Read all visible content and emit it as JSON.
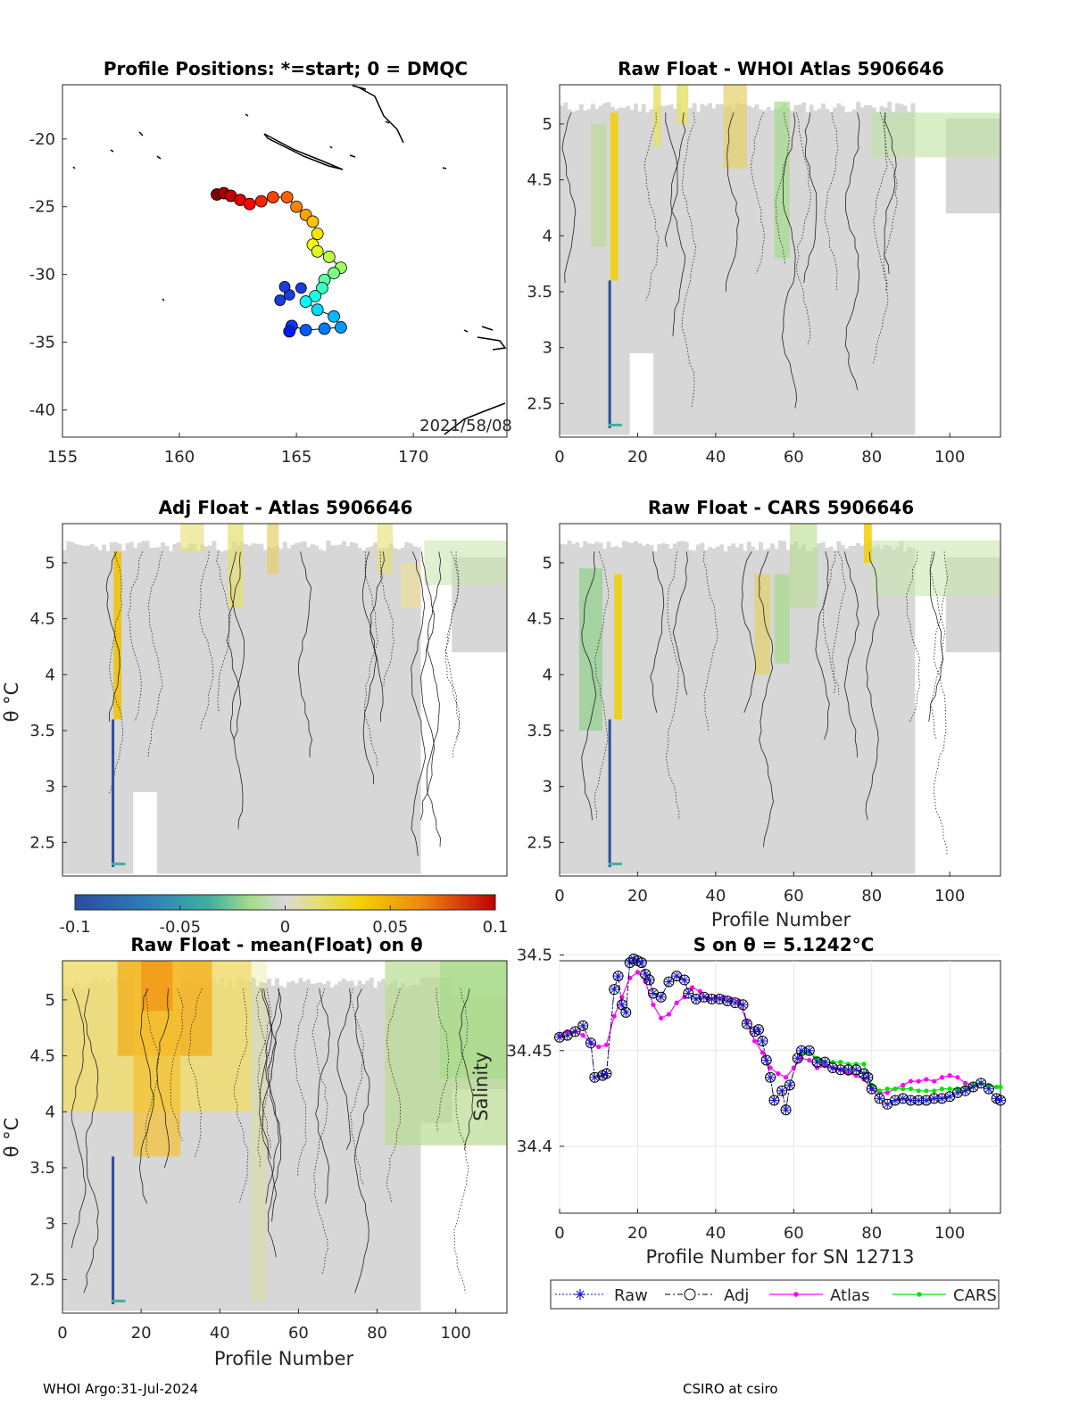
{
  "figure": {
    "footer_left": "WHOI Argo:31-Jul-2024",
    "footer_right": "CSIRO at csiro",
    "colorbar": {
      "ticks": [
        "-0.1",
        "-0.05",
        "0",
        "0.05",
        "0.1"
      ],
      "range": [
        -0.1,
        0.1
      ]
    }
  },
  "chart_data": [
    {
      "id": "positions",
      "type": "scatter",
      "title": "Profile Positions: *=start; 0 = DMQC",
      "annotation": "2021/58/08",
      "xticks": [
        "155",
        "160",
        "165",
        "170"
      ],
      "yticks": [
        "-20",
        "-25",
        "-30",
        "-35",
        "-40"
      ],
      "xlim": [
        155,
        174
      ],
      "ylim": [
        -42,
        -16
      ],
      "track": [
        [
          161.6,
          -24.1
        ],
        [
          161.9,
          -24.0
        ],
        [
          162.2,
          -24.2
        ],
        [
          162.6,
          -24.5
        ],
        [
          163.0,
          -24.8
        ],
        [
          163.5,
          -24.6
        ],
        [
          164.0,
          -24.3
        ],
        [
          164.6,
          -24.3
        ],
        [
          165.0,
          -25.0
        ],
        [
          165.4,
          -25.6
        ],
        [
          165.7,
          -26.1
        ],
        [
          165.9,
          -27.0
        ],
        [
          165.7,
          -27.8
        ],
        [
          165.9,
          -28.3
        ],
        [
          166.4,
          -28.7
        ],
        [
          166.9,
          -29.5
        ],
        [
          166.6,
          -29.9
        ],
        [
          166.2,
          -30.4
        ],
        [
          166.1,
          -31.0
        ],
        [
          165.8,
          -31.6
        ],
        [
          165.4,
          -32.0
        ],
        [
          165.9,
          -32.6
        ],
        [
          166.6,
          -33.1
        ],
        [
          166.9,
          -33.9
        ],
        [
          166.2,
          -34.0
        ],
        [
          165.4,
          -34.1
        ],
        [
          164.8,
          -33.8
        ],
        [
          164.7,
          -34.2
        ]
      ],
      "dmqc_cluster": [
        [
          164.7,
          -31.5
        ],
        [
          164.3,
          -31.9
        ],
        [
          165.2,
          -31.0
        ],
        [
          164.5,
          -30.9
        ]
      ]
    },
    {
      "id": "whoi_atlas",
      "type": "heatmap",
      "title": "Raw Float - WHOI Atlas  5906646",
      "xlabel": "",
      "ylabel": "",
      "xticks": [
        "0",
        "20",
        "40",
        "60",
        "80",
        "100"
      ],
      "yticks": [
        "5",
        "4.5",
        "4",
        "3.5",
        "3",
        "2.5"
      ],
      "xlim": [
        0,
        113
      ],
      "ylim": [
        2.2,
        5.35
      ]
    },
    {
      "id": "adj_atlas",
      "type": "heatmap",
      "title": "Adj Float - Atlas  5906646",
      "xlabel": "",
      "ylabel": "θ °C",
      "xticks": [
        "0",
        "20",
        "40",
        "60",
        "80",
        "100"
      ],
      "yticks": [
        "5",
        "4.5",
        "4",
        "3.5",
        "3",
        "2.5"
      ],
      "xlim": [
        0,
        113
      ],
      "ylim": [
        2.2,
        5.35
      ]
    },
    {
      "id": "cars",
      "type": "heatmap",
      "title": "Raw Float - CARS  5906646",
      "xlabel": "Profile Number",
      "ylabel": "",
      "xticks": [
        "0",
        "20",
        "40",
        "60",
        "80",
        "100"
      ],
      "yticks": [
        "5",
        "4.5",
        "4",
        "3.5",
        "3",
        "2.5"
      ],
      "xlim": [
        0,
        113
      ],
      "ylim": [
        2.2,
        5.35
      ]
    },
    {
      "id": "mean_float",
      "type": "heatmap",
      "title": "Raw Float - mean(Float) on θ",
      "xlabel": "Profile Number",
      "ylabel": "θ °C",
      "xticks": [
        "0",
        "20",
        "40",
        "60",
        "80",
        "100"
      ],
      "yticks": [
        "5",
        "4.5",
        "4",
        "3.5",
        "3",
        "2.5"
      ],
      "xlim": [
        0,
        113
      ],
      "ylim": [
        2.2,
        5.35
      ]
    },
    {
      "id": "salinity",
      "type": "line",
      "title": "S on θ = 5.1242°C",
      "xlabel": "Profile Number for SN 12713",
      "ylabel": "Salinity",
      "xticks": [
        "0",
        "20",
        "40",
        "60",
        "80",
        "100"
      ],
      "yticks": [
        "34.5",
        "34.45",
        "34.4"
      ],
      "xlim": [
        0,
        113
      ],
      "ylim": [
        34.365,
        34.497
      ],
      "legend": [
        "Raw",
        "Adj",
        "Atlas",
        "CARS"
      ],
      "series": [
        {
          "name": "Adj",
          "color": "#000000",
          "points": [
            [
              0,
              34.457
            ],
            [
              2,
              34.458
            ],
            [
              4,
              34.46
            ],
            [
              6,
              34.463
            ],
            [
              8,
              34.454
            ],
            [
              9,
              34.436
            ],
            [
              11,
              34.437
            ],
            [
              12,
              34.438
            ],
            [
              14,
              34.482
            ],
            [
              15,
              34.489
            ],
            [
              16,
              34.474
            ],
            [
              17,
              34.47
            ],
            [
              18,
              34.496
            ],
            [
              19,
              34.498
            ],
            [
              20,
              34.497
            ],
            [
              21,
              34.496
            ],
            [
              22,
              34.49
            ],
            [
              23,
              34.487
            ],
            [
              24,
              34.48
            ],
            [
              26,
              34.478
            ],
            [
              28,
              34.486
            ],
            [
              30,
              34.489
            ],
            [
              32,
              34.487
            ],
            [
              33,
              34.48
            ],
            [
              35,
              34.477
            ],
            [
              37,
              34.478
            ],
            [
              39,
              34.477
            ],
            [
              41,
              34.477
            ],
            [
              43,
              34.476
            ],
            [
              45,
              34.475
            ],
            [
              47,
              34.474
            ],
            [
              48,
              34.464
            ],
            [
              50,
              34.46
            ],
            [
              51,
              34.461
            ],
            [
              52,
              34.455
            ],
            [
              53,
              34.445
            ],
            [
              54,
              34.436
            ],
            [
              55,
              34.424
            ],
            [
              57,
              34.429
            ],
            [
              58,
              34.419
            ],
            [
              59,
              34.432
            ],
            [
              61,
              34.446
            ],
            [
              62,
              34.45
            ],
            [
              64,
              34.45
            ],
            [
              66,
              34.444
            ],
            [
              68,
              34.444
            ],
            [
              70,
              34.441
            ],
            [
              72,
              34.44
            ],
            [
              74,
              34.44
            ],
            [
              76,
              34.44
            ],
            [
              78,
              34.438
            ],
            [
              79,
              34.436
            ],
            [
              80,
              34.43
            ],
            [
              82,
              34.425
            ],
            [
              84,
              34.422
            ],
            [
              86,
              34.424
            ],
            [
              88,
              34.425
            ],
            [
              90,
              34.424
            ],
            [
              92,
              34.424
            ],
            [
              94,
              34.424
            ],
            [
              96,
              34.425
            ],
            [
              98,
              34.425
            ],
            [
              100,
              34.426
            ],
            [
              102,
              34.428
            ],
            [
              104,
              34.429
            ],
            [
              106,
              34.431
            ],
            [
              108,
              34.433
            ],
            [
              110,
              34.43
            ],
            [
              112,
              34.425
            ],
            [
              113,
              34.424
            ]
          ]
        },
        {
          "name": "Atlas",
          "color": "#ff00ff",
          "points": [
            [
              0,
              34.458
            ],
            [
              2,
              34.46
            ],
            [
              4,
              34.46
            ],
            [
              6,
              34.458
            ],
            [
              8,
              34.454
            ],
            [
              10,
              34.452
            ],
            [
              12,
              34.453
            ],
            [
              14,
              34.468
            ],
            [
              16,
              34.478
            ],
            [
              18,
              34.488
            ],
            [
              20,
              34.491
            ],
            [
              22,
              34.486
            ],
            [
              24,
              34.474
            ],
            [
              26,
              34.467
            ],
            [
              28,
              34.469
            ],
            [
              30,
              34.475
            ],
            [
              32,
              34.478
            ],
            [
              34,
              34.483
            ],
            [
              36,
              34.481
            ],
            [
              38,
              34.477
            ],
            [
              40,
              34.478
            ],
            [
              42,
              34.478
            ],
            [
              44,
              34.477
            ],
            [
              46,
              34.476
            ],
            [
              48,
              34.465
            ],
            [
              50,
              34.455
            ],
            [
              52,
              34.449
            ],
            [
              54,
              34.441
            ],
            [
              56,
              34.438
            ],
            [
              58,
              34.436
            ],
            [
              60,
              34.441
            ],
            [
              62,
              34.446
            ],
            [
              64,
              34.445
            ],
            [
              66,
              34.441
            ],
            [
              68,
              34.442
            ],
            [
              70,
              34.441
            ],
            [
              72,
              34.44
            ],
            [
              74,
              34.438
            ],
            [
              76,
              34.437
            ],
            [
              78,
              34.435
            ],
            [
              80,
              34.43
            ],
            [
              82,
              34.428
            ],
            [
              84,
              34.428
            ],
            [
              86,
              34.43
            ],
            [
              88,
              34.432
            ],
            [
              90,
              34.434
            ],
            [
              92,
              34.434
            ],
            [
              94,
              34.435
            ],
            [
              96,
              34.434
            ],
            [
              98,
              34.436
            ],
            [
              100,
              34.437
            ],
            [
              102,
              34.436
            ],
            [
              104,
              34.433
            ],
            [
              106,
              34.432
            ]
          ]
        },
        {
          "name": "CARS",
          "color": "#00e600",
          "points": [
            [
              62,
              34.449
            ],
            [
              64,
              34.449
            ],
            [
              66,
              34.446
            ],
            [
              68,
              34.444
            ],
            [
              70,
              34.444
            ],
            [
              72,
              34.444
            ],
            [
              74,
              34.443
            ],
            [
              76,
              34.443
            ],
            [
              78,
              34.443
            ],
            [
              80,
              34.432
            ],
            [
              82,
              34.429
            ],
            [
              84,
              34.43
            ],
            [
              86,
              34.43
            ],
            [
              88,
              34.43
            ],
            [
              90,
              34.43
            ],
            [
              92,
              34.429
            ],
            [
              94,
              34.429
            ],
            [
              96,
              34.429
            ],
            [
              98,
              34.43
            ],
            [
              100,
              34.43
            ],
            [
              102,
              34.43
            ],
            [
              104,
              34.431
            ],
            [
              106,
              34.432
            ],
            [
              108,
              34.433
            ],
            [
              110,
              34.432
            ],
            [
              112,
              34.431
            ],
            [
              113,
              34.431
            ]
          ]
        }
      ]
    }
  ]
}
